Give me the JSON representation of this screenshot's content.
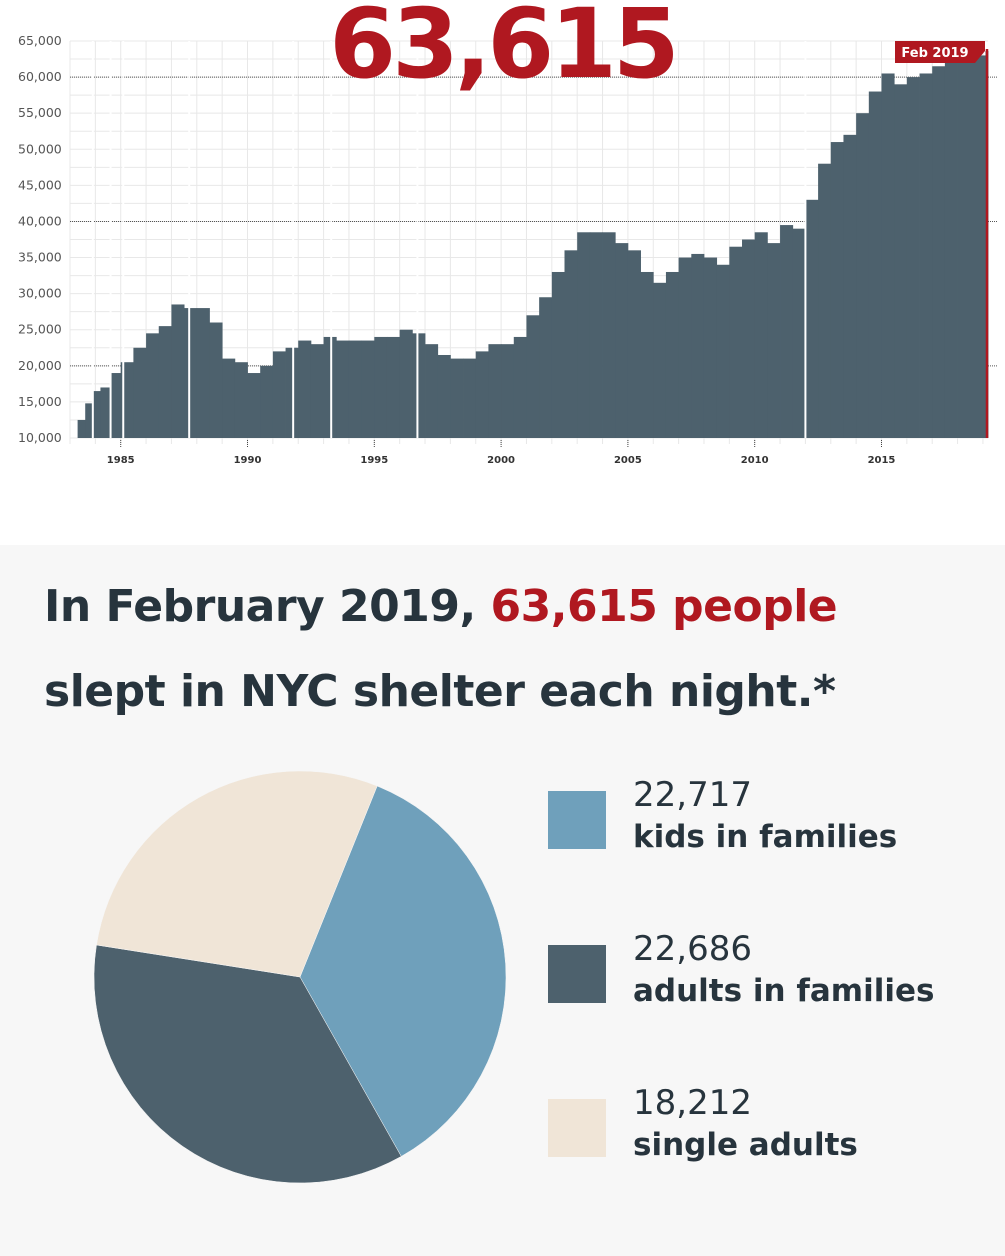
{
  "headline_number": "63,615",
  "chart_data": [
    {
      "type": "bar",
      "title": "",
      "xlabel": "",
      "ylabel": "",
      "ylim": [
        10000,
        65000
      ],
      "xlim": [
        1983,
        2019.2
      ],
      "grid": true,
      "y_ticks": [
        "10,000",
        "15,000",
        "20,000",
        "25,000",
        "30,000",
        "35,000",
        "40,000",
        "45,000",
        "50,000",
        "55,000",
        "60,000",
        "65,000"
      ],
      "y_tick_values": [
        10000,
        15000,
        20000,
        25000,
        30000,
        35000,
        40000,
        45000,
        50000,
        55000,
        60000,
        65000
      ],
      "x_ticks": [
        "1985",
        "1990",
        "1995",
        "2000",
        "2005",
        "2010",
        "2015"
      ],
      "x_tick_values": [
        1985,
        1990,
        1995,
        2000,
        2005,
        2010,
        2015
      ],
      "end_label": "Feb 2019",
      "end_value": 63615,
      "x": [
        1983.3,
        1983.6,
        1983.9,
        1984.2,
        1984.6,
        1985.0,
        1985.5,
        1986.0,
        1986.5,
        1987.0,
        1987.5,
        1988.0,
        1988.5,
        1989.0,
        1989.5,
        1990.0,
        1990.5,
        1991.0,
        1991.5,
        1992.0,
        1992.5,
        1993.0,
        1993.5,
        1994.0,
        1994.5,
        1995.0,
        1995.5,
        1996.0,
        1996.5,
        1997.0,
        1997.5,
        1998.0,
        1998.5,
        1999.0,
        1999.5,
        2000.0,
        2000.5,
        2001.0,
        2001.5,
        2002.0,
        2002.5,
        2003.0,
        2003.5,
        2004.0,
        2004.5,
        2005.0,
        2005.5,
        2006.0,
        2006.5,
        2007.0,
        2007.5,
        2008.0,
        2008.5,
        2009.0,
        2009.5,
        2010.0,
        2010.5,
        2011.0,
        2011.5,
        2012.0,
        2012.5,
        2013.0,
        2013.5,
        2014.0,
        2014.5,
        2015.0,
        2015.5,
        2016.0,
        2016.5,
        2017.0,
        2017.5,
        2018.0,
        2018.5,
        2019.1
      ],
      "values": [
        12500,
        14800,
        16500,
        17000,
        19000,
        20500,
        22500,
        24500,
        25500,
        28500,
        28000,
        28000,
        26000,
        21000,
        20500,
        19000,
        20000,
        22000,
        22500,
        23500,
        23000,
        24000,
        23500,
        23500,
        23500,
        24000,
        24000,
        25000,
        24500,
        23000,
        21500,
        21000,
        21000,
        22000,
        23000,
        23000,
        24000,
        27000,
        29500,
        33000,
        36000,
        38500,
        38500,
        38500,
        37000,
        36000,
        33000,
        31500,
        33000,
        35000,
        35500,
        35000,
        34000,
        36500,
        37500,
        38500,
        37000,
        39500,
        39000,
        43000,
        48000,
        51000,
        52000,
        55000,
        58000,
        60500,
        59000,
        60000,
        60500,
        61500,
        62000,
        62500,
        63000,
        63615
      ]
    },
    {
      "type": "pie",
      "title": "",
      "labels": [
        "kids in families",
        "adults in families",
        "single adults"
      ],
      "values": [
        22717,
        22686,
        18212
      ],
      "display_values": [
        "22,717",
        "22,686",
        "18,212"
      ],
      "colors": [
        "#6fa0bb",
        "#4d616d",
        "#f0e5d7"
      ]
    }
  ],
  "colors": {
    "bar": "#4d616d",
    "accent": "#b01820",
    "grid": "#e8e8e8",
    "bottom_background": "#f7f7f7"
  },
  "headline": {
    "part1": "In February 2019, ",
    "highlight": "63,615 people",
    "part2": "slept in NYC shelter each night.*"
  },
  "legend": [
    {
      "value": "22,717",
      "label": "kids in families",
      "color": "#6fa0bb"
    },
    {
      "value": "22,686",
      "label": "adults in families",
      "color": "#4d616d"
    },
    {
      "value": "18,212",
      "label": "single adults",
      "color": "#f0e5d7"
    }
  ]
}
